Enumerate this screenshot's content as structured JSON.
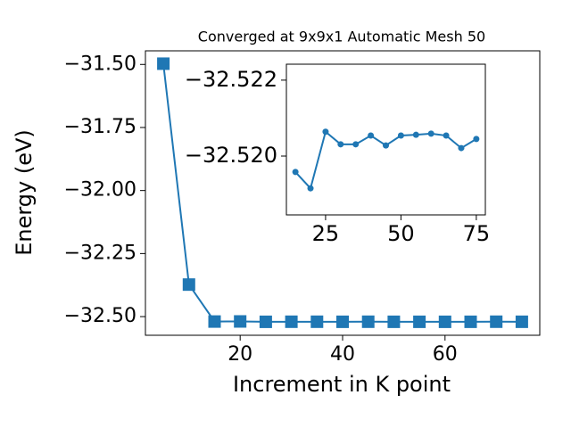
{
  "chart_data": [
    {
      "type": "line",
      "title": "Converged at 9x9x1 Automatic Mesh 50",
      "xlabel": "Increment in K point",
      "ylabel": "Energy (eV)",
      "marker": "square",
      "color": "#1f77b4",
      "x": [
        5,
        10,
        15,
        20,
        25,
        30,
        35,
        40,
        45,
        50,
        55,
        60,
        65,
        70,
        75
      ],
      "values": [
        -31.497,
        -32.373,
        -32.51958,
        -32.51915,
        -32.52064,
        -32.52031,
        -32.52031,
        -32.52054,
        -32.52028,
        -32.52054,
        -32.52056,
        -32.52059,
        -32.52054,
        -32.52021,
        -32.52045
      ],
      "xlim": [
        1.5,
        78.5
      ],
      "ylim": [
        -32.574,
        -31.446
      ],
      "xticks": [
        20,
        40,
        60
      ],
      "yticks": [
        {
          "value": -31.5,
          "label": "−31.50"
        },
        {
          "value": -31.75,
          "label": "−31.75"
        },
        {
          "value": -32.0,
          "label": "−32.00"
        },
        {
          "value": -32.25,
          "label": "−32.25"
        },
        {
          "value": -32.5,
          "label": "−32.50"
        }
      ]
    },
    {
      "type": "line",
      "marker": "circle",
      "color": "#1f77b4",
      "x": [
        15,
        20,
        25,
        30,
        35,
        40,
        45,
        50,
        55,
        60,
        65,
        70,
        75
      ],
      "values": [
        -32.51958,
        -32.51915,
        -32.52064,
        -32.52031,
        -32.52031,
        -32.52054,
        -32.52028,
        -32.52054,
        -32.52056,
        -32.52059,
        -32.52054,
        -32.52021,
        -32.52045
      ],
      "xlim": [
        12,
        78
      ],
      "ylim": [
        -32.51845,
        -32.52242
      ],
      "xticks": [
        25,
        50,
        75
      ],
      "yticks": [
        {
          "value": -32.522,
          "label": "−32.522"
        },
        {
          "value": -32.52,
          "label": "−32.520"
        }
      ]
    }
  ]
}
